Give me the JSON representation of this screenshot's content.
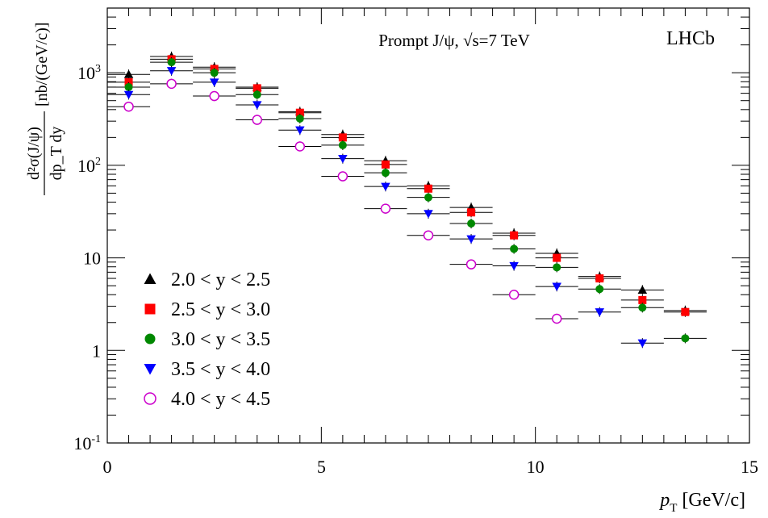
{
  "chart_data": {
    "type": "scatter",
    "title": "Prompt J/ψ, √s=7 TeV",
    "experiment_label": "LHCb",
    "xlabel": {
      "main": "p",
      "sub": "T",
      "unit": "[GeV/c]"
    },
    "ylabel": {
      "numerator": "d²σ(J/ψ)",
      "denominator": "dp_T dy",
      "unit": "[nb/(GeV/c)]"
    },
    "xlim": [
      0,
      15
    ],
    "ylim": [
      0.1,
      5000
    ],
    "yscale": "log",
    "x_ticks": [
      "0",
      "5",
      "10",
      "15"
    ],
    "y_ticks": [
      {
        "value": 0.1,
        "label": "10",
        "exp": "-1"
      },
      {
        "value": 1,
        "label": "1",
        "exp": ""
      },
      {
        "value": 10,
        "label": "10",
        "exp": ""
      },
      {
        "value": 100,
        "label": "10",
        "exp": "2"
      },
      {
        "value": 1000,
        "label": "10",
        "exp": "3"
      }
    ],
    "grid": false,
    "legend_position": "lower-left",
    "series": [
      {
        "name": "2.0 < y < 2.5",
        "marker": "triangle-up",
        "color": "#000000",
        "x": [
          0.5,
          1.5,
          2.5,
          3.5,
          4.5,
          5.5,
          6.5,
          7.5,
          8.5,
          9.5,
          10.5,
          11.5,
          12.5,
          13.5
        ],
        "y": [
          960,
          1500,
          1150,
          700,
          380,
          215,
          112,
          60,
          35,
          18.5,
          11.2,
          6.3,
          4.5,
          2.7
        ]
      },
      {
        "name": "2.5 < y < 3.0",
        "marker": "square",
        "color": "#ff0000",
        "x": [
          0.5,
          1.5,
          2.5,
          3.5,
          4.5,
          5.5,
          6.5,
          7.5,
          8.5,
          9.5,
          10.5,
          11.5,
          12.5,
          13.5
        ],
        "y": [
          790,
          1400,
          1100,
          680,
          370,
          200,
          102,
          56,
          31,
          17.5,
          10,
          6,
          3.5,
          2.6
        ]
      },
      {
        "name": "3.0 < y < 3.5",
        "marker": "circle",
        "color": "#008800",
        "x": [
          0.5,
          1.5,
          2.5,
          3.5,
          4.5,
          5.5,
          6.5,
          7.5,
          8.5,
          9.5,
          10.5,
          11.5,
          12.5,
          13.5
        ],
        "y": [
          700,
          1300,
          1000,
          580,
          320,
          165,
          83,
          45,
          23.5,
          12.5,
          7.9,
          4.6,
          2.9,
          1.35
        ]
      },
      {
        "name": "3.5 < y < 4.0",
        "marker": "triangle-down",
        "color": "#0000ff",
        "x": [
          0.5,
          1.5,
          2.5,
          3.5,
          4.5,
          5.5,
          6.5,
          7.5,
          8.5,
          9.5,
          10.5,
          11.5,
          12.5
        ],
        "y": [
          580,
          1050,
          790,
          450,
          240,
          118,
          59,
          30,
          16,
          8.2,
          4.9,
          2.6,
          1.2
        ]
      },
      {
        "name": "4.0 < y < 4.5",
        "marker": "open-circle",
        "color": "#cc00cc",
        "x": [
          0.5,
          1.5,
          2.5,
          3.5,
          4.5,
          5.5,
          6.5,
          7.5,
          8.5,
          9.5,
          10.5
        ],
        "y": [
          430,
          760,
          560,
          310,
          160,
          76,
          34,
          17.5,
          8.5,
          4.0,
          2.2
        ]
      }
    ]
  }
}
